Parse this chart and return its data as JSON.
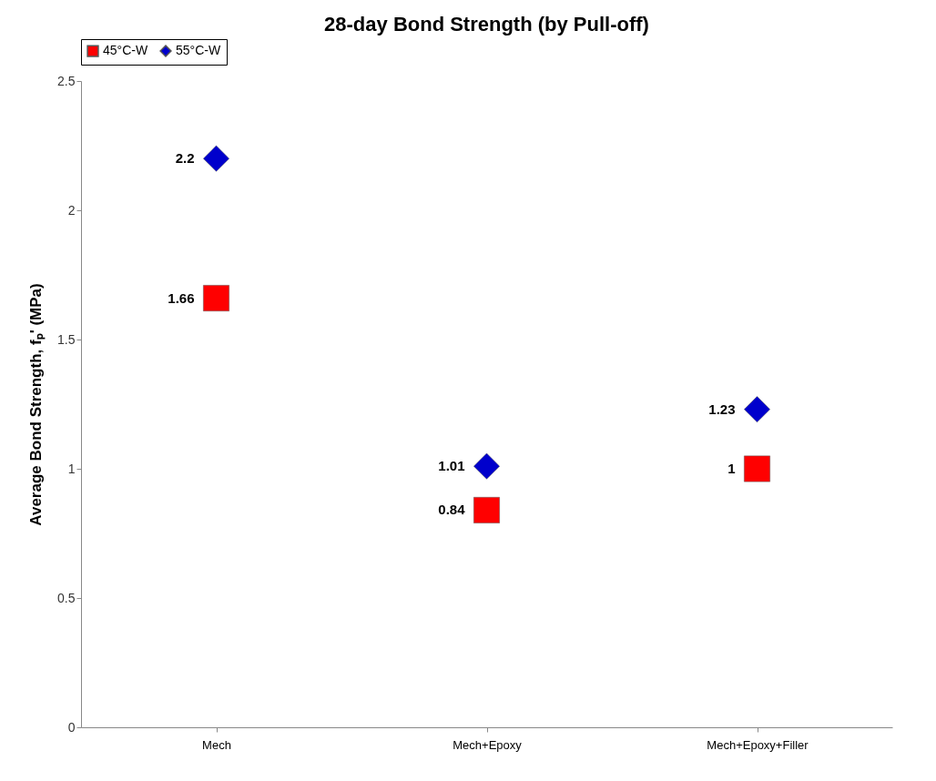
{
  "chart_data": {
    "type": "scatter",
    "title": "28-day Bond Strength (by Pull-off)",
    "ylabel": "Average Bond Strength, fₚ' (MPa)",
    "categories": [
      "Mech",
      "Mech+Epoxy",
      "Mech+Epoxy+Filler"
    ],
    "series": [
      {
        "name": "45°C-W",
        "color": "#ff0000",
        "marker": "square",
        "values": [
          1.66,
          0.84,
          1
        ]
      },
      {
        "name": "55°C-W",
        "color": "#0000cc",
        "marker": "diamond",
        "values": [
          2.2,
          1.01,
          1.23
        ]
      }
    ],
    "ylim": [
      0,
      2.5
    ],
    "yticks": [
      0,
      0.5,
      1,
      1.5,
      2,
      2.5
    ],
    "grid": false,
    "legend": "top",
    "data_labels": true
  }
}
